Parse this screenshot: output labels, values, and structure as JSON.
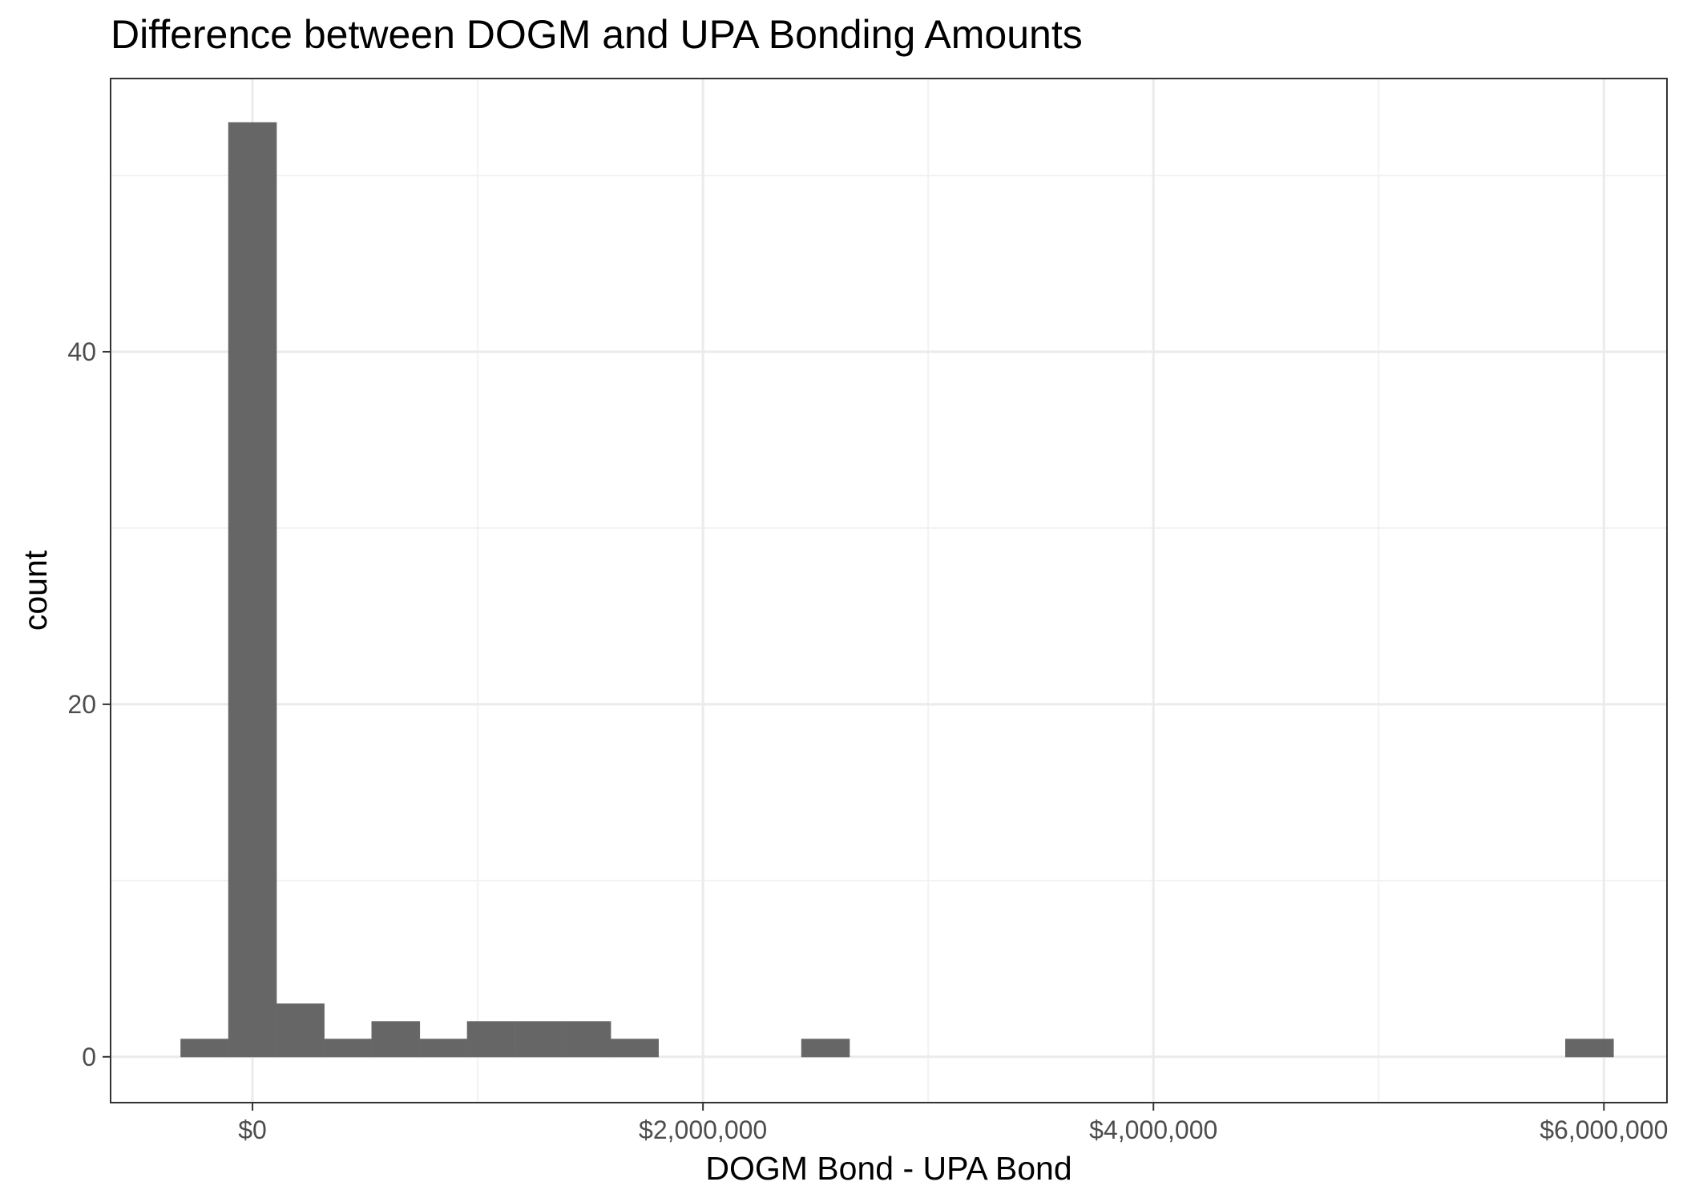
{
  "chart_data": {
    "type": "bar",
    "subtype": "histogram",
    "title": "Difference between DOGM and UPA Bonding Amounts",
    "xlabel": "DOGM Bond - UPA Bond",
    "ylabel": "count",
    "xlim": [
      -630000,
      6280000
    ],
    "ylim": [
      -2.6,
      55.5
    ],
    "x_ticks": [
      {
        "value": 0,
        "label": "$0"
      },
      {
        "value": 2000000,
        "label": "$2,000,000"
      },
      {
        "value": 4000000,
        "label": "$4,000,000"
      },
      {
        "value": 6000000,
        "label": "$6,000,000"
      }
    ],
    "y_ticks": [
      {
        "value": 0,
        "label": "0"
      },
      {
        "value": 20,
        "label": "20"
      },
      {
        "value": 40,
        "label": "40"
      }
    ],
    "bin_width": 212000,
    "bins": [
      {
        "x0": -318000,
        "x1": -106000,
        "count": 1
      },
      {
        "x0": -106000,
        "x1": 106000,
        "count": 53
      },
      {
        "x0": 106000,
        "x1": 318000,
        "count": 3
      },
      {
        "x0": 318000,
        "x1": 530000,
        "count": 1
      },
      {
        "x0": 530000,
        "x1": 742000,
        "count": 2
      },
      {
        "x0": 742000,
        "x1": 954000,
        "count": 1
      },
      {
        "x0": 954000,
        "x1": 1166000,
        "count": 2
      },
      {
        "x0": 1166000,
        "x1": 1378000,
        "count": 2
      },
      {
        "x0": 1378000,
        "x1": 1590000,
        "count": 2
      },
      {
        "x0": 1590000,
        "x1": 1802000,
        "count": 1
      },
      {
        "x0": 2438000,
        "x1": 2650000,
        "count": 1
      },
      {
        "x0": 5830000,
        "x1": 6042000,
        "count": 1
      }
    ],
    "grid": true,
    "legend": "none",
    "colors": {
      "bar_fill": "#595959",
      "panel_border": "#333333",
      "grid_major": "#ebebeb",
      "grid_minor": "#f2f2f2",
      "tick_text": "#4d4d4d"
    }
  }
}
